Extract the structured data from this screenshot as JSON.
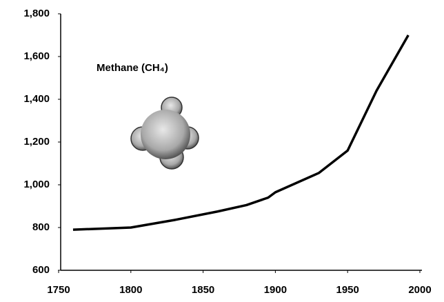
{
  "chart_data": {
    "type": "line",
    "annotation": "Methane (CH₄)",
    "x": [
      1760,
      1800,
      1830,
      1860,
      1880,
      1895,
      1900,
      1930,
      1950,
      1970,
      1992
    ],
    "series": [
      {
        "color": "#000000",
        "values": [
          790,
          800,
          835,
          875,
          905,
          940,
          965,
          1055,
          1160,
          1440,
          1700
        ]
      }
    ],
    "xlim": [
      1750,
      2000
    ],
    "xticks": [
      1750,
      1800,
      1850,
      1900,
      1950,
      2000
    ],
    "ylim": [
      600,
      1800
    ],
    "yticks": [
      600,
      800,
      {
        "value": 1000,
        "label": "1,000"
      },
      {
        "value": 1200,
        "label": "1,200"
      },
      {
        "value": 1400,
        "label": "1,400"
      },
      {
        "value": 1600,
        "label": "1,600"
      },
      {
        "value": 1800,
        "label": "1,800"
      }
    ]
  }
}
